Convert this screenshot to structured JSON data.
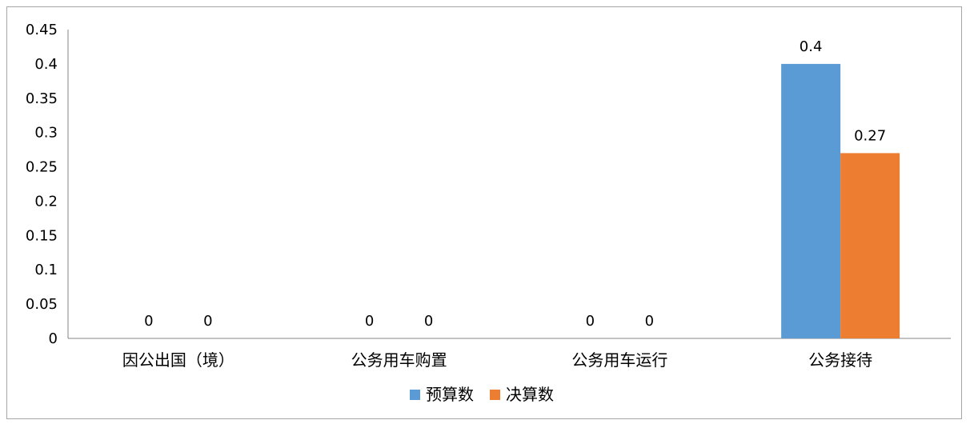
{
  "chart_data": {
    "type": "bar",
    "categories": [
      "因公出国（境）",
      "公务用车购置",
      "公务用车运行",
      "公务接待"
    ],
    "series": [
      {
        "name": "预算数",
        "values": [
          0,
          0,
          0,
          0.4
        ],
        "labels": [
          "0",
          "0",
          "0",
          "0.4"
        ],
        "color": "#5b9bd5"
      },
      {
        "name": "决算数",
        "values": [
          0,
          0,
          0,
          0.27
        ],
        "labels": [
          "0",
          "0",
          "0",
          "0.27"
        ],
        "color": "#ed7d31"
      }
    ],
    "yticks": [
      "0",
      "0.05",
      "0.1",
      "0.15",
      "0.2",
      "0.25",
      "0.3",
      "0.35",
      "0.4",
      "0.45"
    ],
    "ylim": [
      0,
      0.45
    ],
    "grid": false,
    "legend": "bottom-center"
  }
}
